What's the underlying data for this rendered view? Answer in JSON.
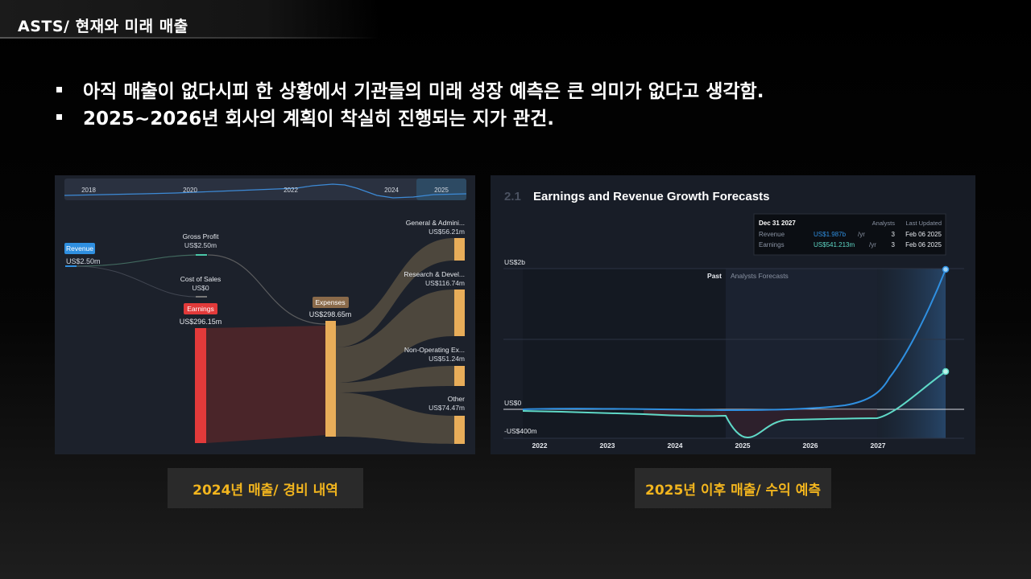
{
  "header": {
    "title": "ASTS/ 현재와 미래 매출"
  },
  "bullets": [
    "아직 매출이 없다시피 한 상황에서 기관들의 미래 성장 예측은 큰 의미가 없다고 생각함.",
    "2025~2026년 회사의 계획이 착실히 진행되는 지가 관건."
  ],
  "left_panel": {
    "timeline_years": [
      "2018",
      "2020",
      "2022",
      "2024",
      "2025"
    ],
    "nodes": {
      "revenue": {
        "label": "Revenue",
        "value": "US$2.50m"
      },
      "gross_profit": {
        "label": "Gross Profit",
        "value": "US$2.50m"
      },
      "cost_of_sales": {
        "label": "Cost of Sales",
        "value": "US$0"
      },
      "earnings": {
        "label": "Earnings",
        "value": "US$296.15m"
      },
      "expenses": {
        "label": "Expenses",
        "value": "US$298.65m"
      },
      "general": {
        "label": "General & Admini...",
        "value": "US$56.21m"
      },
      "research": {
        "label": "Research & Devel...",
        "value": "US$116.74m"
      },
      "non_operating": {
        "label": "Non-Operating Ex...",
        "value": "US$51.24m"
      },
      "other": {
        "label": "Other",
        "value": "US$74.47m"
      }
    },
    "caption": "2024년 매출/ 경비 내역"
  },
  "right_panel": {
    "section_number": "2.1",
    "title": "Earnings and Revenue Growth Forecasts",
    "tooltip": {
      "date": "Dec 31 2027",
      "col_analysts": "Analysts",
      "col_updated": "Last Updated",
      "rows": [
        {
          "name": "Revenue",
          "value": "US$1.987b",
          "unit": "/yr",
          "analysts": "3",
          "updated": "Feb 06 2025"
        },
        {
          "name": "Earnings",
          "value": "US$541.213m",
          "unit": "/yr",
          "analysts": "3",
          "updated": "Feb 06 2025"
        }
      ]
    },
    "y_labels": [
      "US$2b",
      "US$0",
      "-US$400m"
    ],
    "past_label": "Past",
    "forecast_label": "Analysts Forecasts",
    "x_labels": [
      "2022",
      "2023",
      "2024",
      "2025",
      "2026",
      "2027"
    ],
    "colors": {
      "revenue": "#2f8fe0",
      "earnings": "#5fd9c7"
    },
    "caption": "2025년 이후 매출/ 수익 예측"
  }
}
